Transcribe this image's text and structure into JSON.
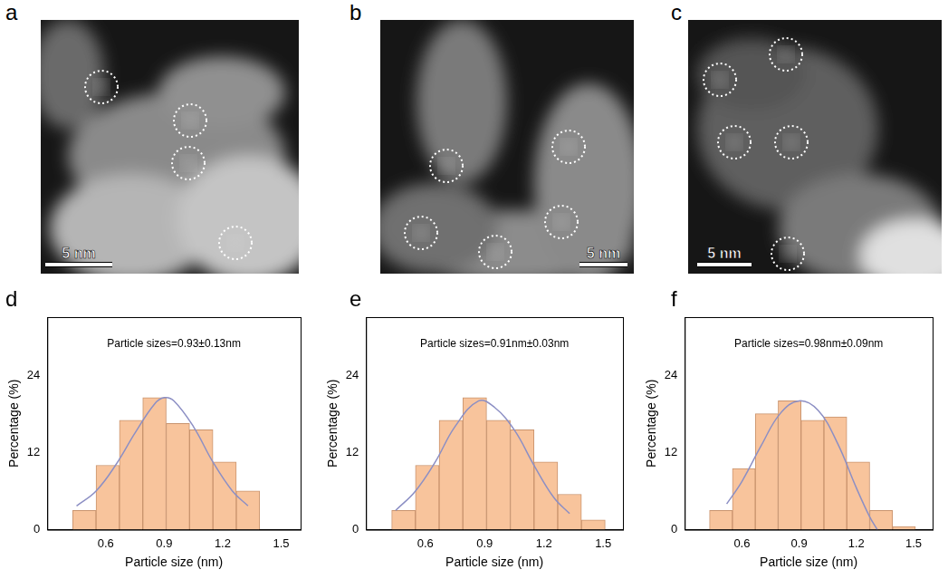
{
  "images": [
    {
      "label": "a",
      "scale_bar": "5 nm"
    },
    {
      "label": "b",
      "scale_bar": "5 nm"
    },
    {
      "label": "c",
      "scale_bar": "5 nm"
    }
  ],
  "chart_data": [
    {
      "label": "d",
      "type": "histogram",
      "annotation": "Particle sizes=0.93±0.13nm",
      "x_label": "Particle size (nm)",
      "y_label": "Percentage (%)",
      "bins": [
        0.43,
        0.55,
        0.67,
        0.79,
        0.91,
        1.03,
        1.15,
        1.27,
        1.39
      ],
      "counts": [
        3,
        10,
        17,
        20.5,
        16.5,
        15.5,
        10.5,
        6
      ],
      "color": "#f8c49c",
      "fit": {
        "type": "line",
        "color": "#8c8fc4",
        "x": [
          0.45,
          0.55,
          0.65,
          0.75,
          0.85,
          0.9,
          0.95,
          1.05,
          1.15,
          1.25,
          1.33
        ],
        "y": [
          3.7,
          6,
          10,
          15,
          19.5,
          20.5,
          20,
          16,
          10.5,
          6,
          3.7
        ]
      },
      "xlim": [
        0.3,
        1.6
      ],
      "xticks": [
        0.6,
        0.9,
        1.2,
        1.5
      ],
      "ylim": [
        0,
        33
      ],
      "yticks": [
        0,
        12,
        24
      ],
      "grid": false
    },
    {
      "label": "e",
      "type": "histogram",
      "annotation": "Particle sizes=0.91nm±0.03nm",
      "x_label": "Particle size (nm)",
      "y_label": "Percentage (%)",
      "bins": [
        0.43,
        0.55,
        0.67,
        0.79,
        0.91,
        1.03,
        1.15,
        1.27,
        1.39,
        1.51
      ],
      "counts": [
        3,
        10,
        17,
        20.5,
        17,
        15.5,
        10.5,
        5.5,
        1.5
      ],
      "color": "#f8c49c",
      "fit": {
        "type": "line",
        "color": "#8c8fc4",
        "x": [
          0.45,
          0.55,
          0.65,
          0.75,
          0.87,
          0.95,
          1.05,
          1.15,
          1.25,
          1.33
        ],
        "y": [
          3,
          6,
          10.5,
          16,
          20,
          19,
          15.5,
          10,
          5,
          2.5
        ]
      },
      "xlim": [
        0.3,
        1.6
      ],
      "xticks": [
        0.6,
        0.9,
        1.2,
        1.5
      ],
      "ylim": [
        0,
        33
      ],
      "yticks": [
        0,
        12,
        24
      ],
      "grid": false
    },
    {
      "label": "f",
      "type": "histogram",
      "annotation": "Particle sizes=0.98nm±0.09nm",
      "x_label": "Particle size (nm)",
      "y_label": "Percentage (%)",
      "bins": [
        0.43,
        0.55,
        0.67,
        0.79,
        0.91,
        1.03,
        1.15,
        1.27,
        1.39,
        1.51
      ],
      "counts": [
        3,
        9.5,
        18,
        20,
        17,
        17.5,
        10.5,
        3,
        0.5
      ],
      "color": "#f8c49c",
      "fit": {
        "type": "line",
        "color": "#8c8fc4",
        "x": [
          0.52,
          0.6,
          0.7,
          0.8,
          0.9,
          1.0,
          1.1,
          1.2,
          1.27,
          1.31
        ],
        "y": [
          4,
          7.5,
          13,
          18,
          20,
          18.5,
          13.5,
          6.5,
          2,
          0
        ]
      },
      "xlim": [
        0.3,
        1.6
      ],
      "xticks": [
        0.6,
        0.9,
        1.2,
        1.5
      ],
      "ylim": [
        0,
        33
      ],
      "yticks": [
        0,
        12,
        24
      ],
      "grid": false
    }
  ]
}
